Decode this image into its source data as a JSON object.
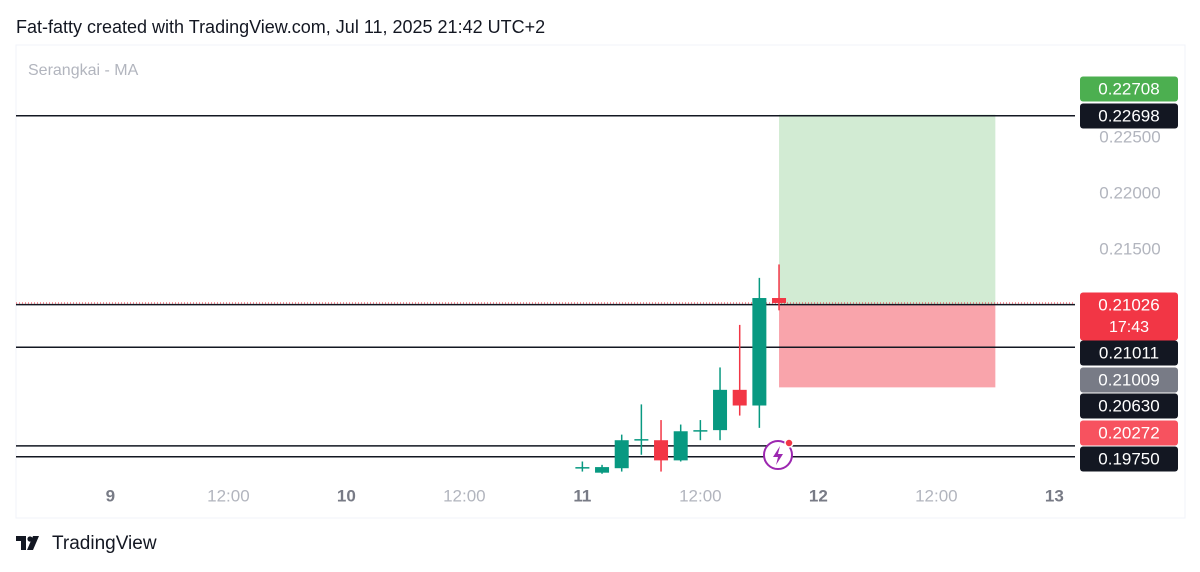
{
  "header": "Fat-fatty created with TradingView.com, Jul 11, 2025 21:42 UTC+2",
  "footer": "TradingView",
  "chart_data": {
    "type": "candlestick",
    "title": "Serangkai - MA",
    "x": [
      48,
      50,
      52,
      54,
      56,
      58,
      60,
      62,
      64,
      66,
      68
    ],
    "open": [
      0.1955,
      0.1951,
      0.1955,
      0.198,
      0.198,
      0.1962,
      0.1988,
      0.1989,
      0.2025,
      0.2011,
      0.2107
    ],
    "high": [
      0.1961,
      0.1958,
      0.1985,
      0.2012,
      0.1998,
      0.1994,
      0.1998,
      0.2045,
      0.2083,
      0.2125,
      0.2137
    ],
    "low": [
      0.1952,
      0.195,
      0.1952,
      0.1967,
      0.1952,
      0.1961,
      0.198,
      0.198,
      0.2002,
      0.1991,
      0.2096
    ],
    "close": [
      0.1956,
      0.1956,
      0.198,
      0.1981,
      0.1962,
      0.1988,
      0.1989,
      0.2025,
      0.2011,
      0.2107,
      0.21026
    ],
    "up_color": "#089981",
    "down_color": "#f23645",
    "xlim": [
      -9.6,
      98.1
    ],
    "xticks": [
      {
        "value": 0,
        "label": "9"
      },
      {
        "value": 12,
        "label": "12:00"
      },
      {
        "value": 24,
        "label": "10"
      },
      {
        "value": 36,
        "label": "12:00"
      },
      {
        "value": 48,
        "label": "11"
      },
      {
        "value": 60,
        "label": "12:00"
      },
      {
        "value": 72,
        "label": "12"
      },
      {
        "value": 84,
        "label": "12:00"
      },
      {
        "value": 96,
        "label": "13"
      }
    ],
    "ylim": [
      0.194,
      0.2333
    ],
    "yticks": [
      {
        "value": 0.215,
        "label": "0.21500"
      },
      {
        "value": 0.22,
        "label": "0.22000"
      },
      {
        "value": 0.225,
        "label": "0.22500"
      }
    ],
    "last_price": {
      "value": 0.21026,
      "countdown": "17:43"
    },
    "position": {
      "x_start": 68,
      "x_end": 90,
      "entry": 0.21009,
      "target": 0.22708,
      "stop": 0.20272
    },
    "horizontal_lines": [
      {
        "value": 0.22698
      },
      {
        "value": 0.21011
      },
      {
        "value": 0.2063,
        "label": "0.20630"
      },
      {
        "value": 0.1975,
        "label": "0.19750"
      },
      {
        "value": 0.19652
      }
    ]
  }
}
